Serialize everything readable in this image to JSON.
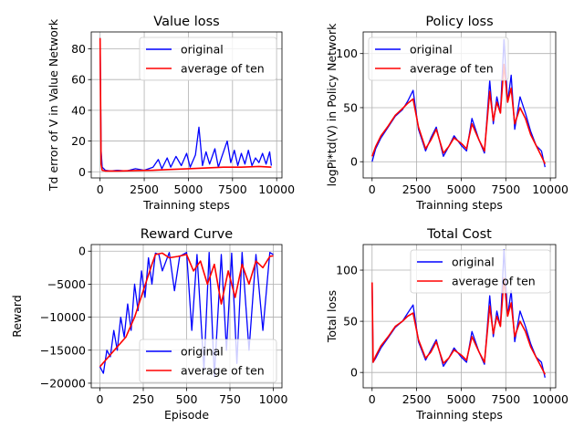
{
  "colors": {
    "original": "#0000ff",
    "average": "#ff0000",
    "grid": "#b0b0b0"
  },
  "chart_data": [
    {
      "type": "line",
      "title": "Value loss",
      "xlabel": "Trainning steps",
      "ylabel": "Td error of V in Value Network",
      "xlim": [
        -500,
        10300
      ],
      "ylim": [
        -4,
        91
      ],
      "xticks": [
        0,
        2500,
        5000,
        7500,
        10000
      ],
      "yticks": [
        0,
        20,
        40,
        60,
        80
      ],
      "grid": true,
      "legend_position": "top-right",
      "series": [
        {
          "name": "original",
          "color": "#0000ff",
          "x": [
            0,
            60,
            120,
            300,
            600,
            1000,
            1500,
            2000,
            2500,
            3000,
            3300,
            3500,
            3800,
            4000,
            4300,
            4600,
            4900,
            5100,
            5400,
            5600,
            5800,
            6000,
            6200,
            6500,
            6700,
            6900,
            7200,
            7400,
            7600,
            7800,
            8000,
            8200,
            8400,
            8600,
            8800,
            9000,
            9200,
            9400,
            9600,
            9700
          ],
          "y": [
            87,
            14,
            3,
            1,
            0.5,
            1,
            0.5,
            2,
            1,
            3,
            8,
            2,
            9,
            3,
            10,
            4,
            12,
            3,
            11,
            29,
            4,
            13,
            5,
            15,
            3,
            10,
            20,
            6,
            14,
            4,
            12,
            5,
            14,
            4,
            9,
            6,
            12,
            5,
            13,
            4
          ]
        },
        {
          "name": "average of ten",
          "color": "#ff0000",
          "x": [
            0,
            60,
            120,
            300,
            1000,
            2000,
            3000,
            4000,
            5000,
            6000,
            7000,
            8000,
            9000,
            9700
          ],
          "y": [
            87,
            5,
            1,
            0.5,
            0.5,
            0.8,
            1,
            1.5,
            2,
            2.5,
            3,
            3,
            3.5,
            3
          ]
        }
      ]
    },
    {
      "type": "line",
      "title": "Policy loss",
      "xlabel": "Trainning steps",
      "ylabel": "logPi*td(V) in Policy Network",
      "xlim": [
        -500,
        10300
      ],
      "ylim": [
        -15,
        120
      ],
      "xticks": [
        0,
        2500,
        5000,
        7500,
        10000
      ],
      "yticks": [
        0,
        50,
        100
      ],
      "grid": true,
      "legend_position": "top-left",
      "series": [
        {
          "name": "original",
          "color": "#0000ff",
          "x": [
            0,
            200,
            500,
            900,
            1300,
            1700,
            2000,
            2300,
            2600,
            3000,
            3300,
            3600,
            4000,
            4300,
            4600,
            5000,
            5300,
            5600,
            6000,
            6300,
            6600,
            6800,
            7000,
            7200,
            7400,
            7600,
            7800,
            8000,
            8300,
            8600,
            8900,
            9200,
            9500,
            9700
          ],
          "y": [
            0,
            12,
            22,
            32,
            42,
            48,
            56,
            66,
            30,
            10,
            22,
            32,
            5,
            14,
            24,
            15,
            10,
            40,
            20,
            8,
            75,
            35,
            60,
            45,
            113,
            55,
            80,
            30,
            60,
            45,
            28,
            15,
            10,
            -5
          ]
        },
        {
          "name": "average of ten",
          "color": "#ff0000",
          "x": [
            0,
            200,
            500,
            900,
            1300,
            1700,
            2000,
            2300,
            2600,
            3000,
            3300,
            3600,
            4000,
            4300,
            4600,
            5000,
            5300,
            5600,
            6000,
            6300,
            6600,
            6800,
            7000,
            7200,
            7400,
            7600,
            7800,
            8000,
            8300,
            8600,
            8900,
            9200,
            9500,
            9700
          ],
          "y": [
            5,
            14,
            24,
            33,
            43,
            49,
            54,
            58,
            32,
            12,
            20,
            30,
            8,
            14,
            22,
            17,
            12,
            35,
            20,
            10,
            65,
            38,
            55,
            45,
            90,
            55,
            68,
            35,
            50,
            40,
            25,
            15,
            5,
            -2
          ]
        }
      ]
    },
    {
      "type": "line",
      "title": "Reward Curve",
      "xlabel": "Episode",
      "ylabel": "Reward",
      "xlim": [
        -50,
        1050
      ],
      "ylim": [
        -20700,
        1000
      ],
      "xticks": [
        0,
        250,
        500,
        750,
        1000
      ],
      "yticks": [
        0,
        -5000,
        -10000,
        -15000,
        -20000
      ],
      "grid": true,
      "legend_position": "bottom-right",
      "series": [
        {
          "name": "original",
          "color": "#0000ff",
          "x": [
            0,
            20,
            40,
            60,
            80,
            100,
            120,
            140,
            160,
            180,
            200,
            220,
            240,
            260,
            280,
            300,
            320,
            340,
            360,
            400,
            430,
            460,
            500,
            530,
            560,
            600,
            630,
            660,
            700,
            730,
            760,
            790,
            820,
            860,
            900,
            940,
            980,
            1000
          ],
          "y": [
            -17500,
            -18500,
            -15000,
            -16000,
            -12000,
            -15000,
            -10000,
            -13000,
            -8000,
            -12000,
            -5000,
            -9000,
            -3000,
            -7000,
            -1000,
            -5000,
            -300,
            -500,
            -3000,
            -200,
            -6000,
            -800,
            -200,
            -12000,
            -500,
            -18000,
            -200,
            -19000,
            -500,
            -15000,
            -300,
            -17000,
            -200,
            -15000,
            -500,
            -12000,
            -200,
            -500
          ]
        },
        {
          "name": "average of ten",
          "color": "#ff0000",
          "x": [
            0,
            50,
            100,
            150,
            200,
            250,
            300,
            320,
            360,
            400,
            450,
            500,
            540,
            580,
            620,
            660,
            700,
            740,
            780,
            820,
            860,
            900,
            940,
            980,
            1000
          ],
          "y": [
            -17500,
            -16000,
            -14500,
            -13000,
            -10000,
            -6000,
            -2000,
            -500,
            -300,
            -1000,
            -800,
            -500,
            -3000,
            -1500,
            -5000,
            -2000,
            -8000,
            -3000,
            -7000,
            -2000,
            -5000,
            -1500,
            -2500,
            -800,
            -700
          ]
        }
      ]
    },
    {
      "type": "line",
      "title": "Total Cost",
      "xlabel": "Trainning steps",
      "ylabel": "Total loss",
      "xlim": [
        -500,
        10300
      ],
      "ylim": [
        -15,
        125
      ],
      "xticks": [
        0,
        2500,
        5000,
        7500,
        10000
      ],
      "yticks": [
        0,
        50,
        100
      ],
      "grid": true,
      "legend_position": "top-right",
      "series": [
        {
          "name": "original",
          "color": "#0000ff",
          "x": [
            0,
            60,
            200,
            500,
            900,
            1300,
            1700,
            2000,
            2300,
            2600,
            3000,
            3300,
            3600,
            4000,
            4300,
            4600,
            5000,
            5300,
            5600,
            6000,
            6300,
            6600,
            6800,
            7000,
            7200,
            7400,
            7600,
            7800,
            8000,
            8300,
            8600,
            8900,
            9200,
            9500,
            9700
          ],
          "y": [
            88,
            10,
            14,
            24,
            34,
            44,
            50,
            58,
            66,
            30,
            12,
            22,
            32,
            6,
            14,
            24,
            15,
            10,
            40,
            20,
            8,
            75,
            35,
            60,
            45,
            120,
            55,
            80,
            30,
            60,
            45,
            28,
            15,
            10,
            -5
          ]
        },
        {
          "name": "average of ten",
          "color": "#ff0000",
          "x": [
            0,
            60,
            200,
            500,
            900,
            1300,
            1700,
            2000,
            2300,
            2600,
            3000,
            3300,
            3600,
            4000,
            4300,
            4600,
            5000,
            5300,
            5600,
            6000,
            6300,
            6600,
            6800,
            7000,
            7200,
            7400,
            7600,
            7800,
            8000,
            8300,
            8600,
            8900,
            9200,
            9500,
            9700
          ],
          "y": [
            88,
            10,
            16,
            26,
            35,
            45,
            50,
            55,
            58,
            32,
            14,
            20,
            30,
            9,
            14,
            22,
            17,
            12,
            35,
            20,
            10,
            65,
            38,
            55,
            45,
            92,
            55,
            68,
            35,
            50,
            40,
            25,
            15,
            5,
            -2
          ]
        }
      ]
    }
  ]
}
